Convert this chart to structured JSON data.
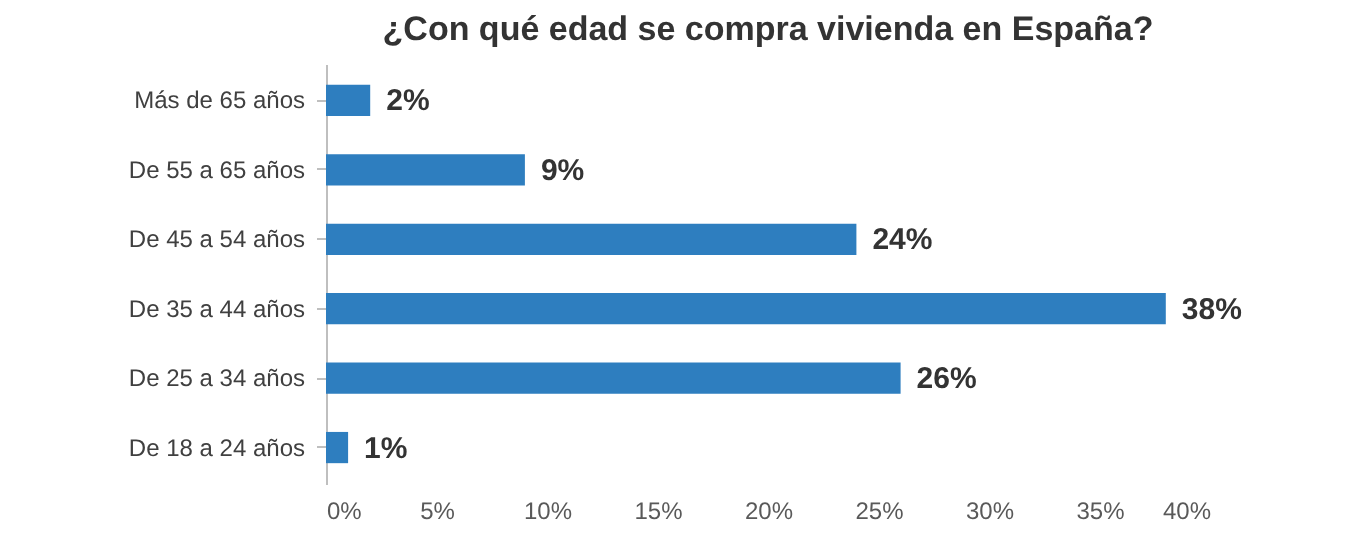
{
  "chart_data": {
    "type": "bar",
    "orientation": "horizontal",
    "title": "¿Con qué edad se compra vivienda en España?",
    "categories": [
      "Más de 65 años",
      "De 55 a 65 años",
      "De 45 a 54 años",
      "De 35 a 44 años",
      "De 25 a 34 años",
      "De 18 a 24 años"
    ],
    "values": [
      2,
      9,
      24,
      38,
      26,
      1
    ],
    "value_labels": [
      "2%",
      "9%",
      "24%",
      "38%",
      "26%",
      "1%"
    ],
    "color": "#2e7ebf",
    "xlim": [
      0,
      40
    ],
    "xticks": [
      {
        "value": 0,
        "label": "0%"
      },
      {
        "value": 5,
        "label": "5%"
      },
      {
        "value": 10,
        "label": "10%"
      },
      {
        "value": 15,
        "label": "15%"
      },
      {
        "value": 20,
        "label": "20%"
      },
      {
        "value": 25,
        "label": "25%"
      },
      {
        "value": 30,
        "label": "30%"
      },
      {
        "value": 35,
        "label": "35%"
      },
      {
        "value": 40,
        "label": "40%"
      }
    ],
    "grid": false
  }
}
